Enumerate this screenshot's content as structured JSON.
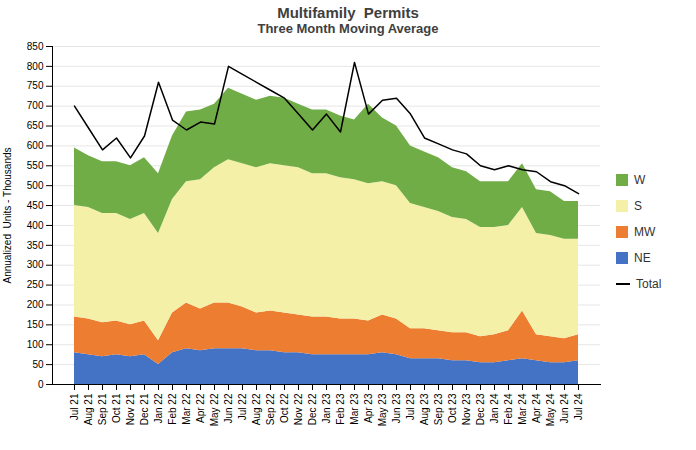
{
  "chart_data": {
    "type": "area",
    "stacked": true,
    "title": "Multifamily  Permits",
    "subtitle": "Three Month Moving Average",
    "ylabel": "Annualized  Units - Thousands",
    "categories": [
      "Jul 21",
      "Aug 21",
      "Sep 21",
      "Oct 21",
      "Nov 21",
      "Dec 21",
      "Jan 22",
      "Feb 22",
      "Mar 22",
      "Apr 22",
      "May 22",
      "Jun 22",
      "Jul 22",
      "Aug 22",
      "Sep 22",
      "Oct 22",
      "Nov 22",
      "Dec 22",
      "Jan 23",
      "Feb 23",
      "Mar 23",
      "Apr 23",
      "May 23",
      "Jun 23",
      "Jul 23",
      "Aug 23",
      "Sep 23",
      "Oct 23",
      "Nov 23",
      "Dec 23",
      "Jan 24",
      "Feb 24",
      "Mar 24",
      "Apr 24",
      "May 24",
      "Jun 24",
      "Jul 24"
    ],
    "series": [
      {
        "name": "NE",
        "type": "area",
        "color": "#4472c4",
        "values": [
          80,
          75,
          70,
          75,
          70,
          75,
          50,
          80,
          90,
          85,
          90,
          90,
          90,
          85,
          85,
          80,
          80,
          75,
          75,
          75,
          75,
          75,
          80,
          75,
          65,
          65,
          65,
          60,
          60,
          55,
          55,
          60,
          65,
          60,
          55,
          55,
          60
        ]
      },
      {
        "name": "MW",
        "type": "area",
        "color": "#ed7d31",
        "values": [
          90,
          90,
          85,
          85,
          80,
          85,
          60,
          100,
          115,
          105,
          115,
          115,
          105,
          95,
          100,
          100,
          95,
          95,
          95,
          90,
          90,
          85,
          95,
          90,
          75,
          75,
          70,
          70,
          70,
          65,
          70,
          75,
          120,
          65,
          65,
          60,
          65
        ]
      },
      {
        "name": "S",
        "type": "area",
        "color": "#f5f0a8",
        "values": [
          280,
          280,
          275,
          270,
          265,
          270,
          270,
          285,
          305,
          325,
          340,
          360,
          360,
          365,
          370,
          370,
          370,
          360,
          360,
          355,
          350,
          345,
          335,
          335,
          315,
          305,
          300,
          290,
          285,
          275,
          270,
          265,
          260,
          255,
          255,
          250,
          240
        ]
      },
      {
        "name": "W",
        "type": "area",
        "color": "#70ad47",
        "values": [
          145,
          130,
          130,
          130,
          135,
          140,
          150,
          160,
          175,
          175,
          160,
          180,
          175,
          170,
          170,
          170,
          160,
          160,
          160,
          155,
          150,
          200,
          160,
          150,
          145,
          140,
          135,
          125,
          120,
          115,
          115,
          110,
          110,
          110,
          110,
          95,
          95
        ]
      },
      {
        "name": "Total",
        "type": "line",
        "color": "#000000",
        "values": [
          700,
          645,
          590,
          620,
          570,
          625,
          760,
          665,
          640,
          660,
          655,
          800,
          780,
          760,
          740,
          720,
          680,
          640,
          680,
          635,
          810,
          680,
          715,
          720,
          680,
          620,
          605,
          590,
          580,
          550,
          540,
          550,
          540,
          535,
          510,
          500,
          480
        ]
      }
    ],
    "ylim": [
      0,
      850
    ],
    "yticks": [
      0,
      50,
      100,
      150,
      200,
      250,
      300,
      350,
      400,
      450,
      500,
      550,
      600,
      650,
      700,
      750,
      800,
      850
    ],
    "grid": true,
    "legend": "right"
  }
}
